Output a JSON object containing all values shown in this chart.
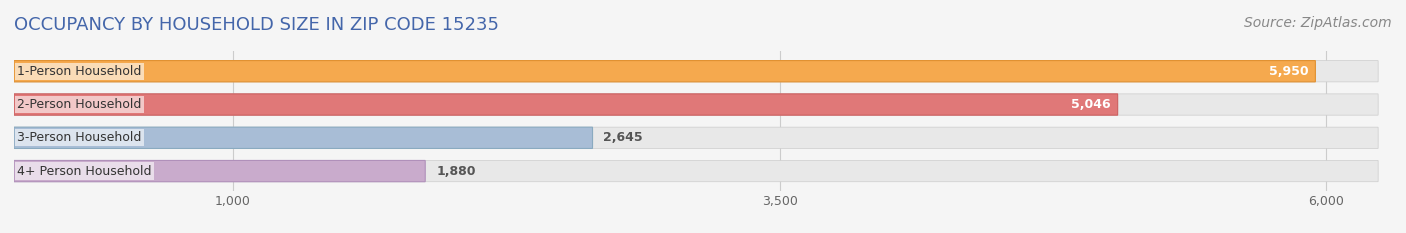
{
  "title": "OCCUPANCY BY HOUSEHOLD SIZE IN ZIP CODE 15235",
  "source": "Source: ZipAtlas.com",
  "categories": [
    "1-Person Household",
    "2-Person Household",
    "3-Person Household",
    "4+ Person Household"
  ],
  "values": [
    5950,
    5046,
    2645,
    1880
  ],
  "bar_colors": [
    "#F5A94E",
    "#E07878",
    "#A8BDD6",
    "#C9ABCC"
  ],
  "bar_edge_colors": [
    "#E09030",
    "#CC6060",
    "#8AAAC0",
    "#B090BA"
  ],
  "value_labels": [
    "5,950",
    "5,046",
    "2,645",
    "1,880"
  ],
  "label_colors": [
    "#ffffff",
    "#ffffff",
    "#555555",
    "#555555"
  ],
  "x_ticks": [
    1000,
    3500,
    6000
  ],
  "x_tick_labels": [
    "1,000",
    "3,500",
    "6,000"
  ],
  "xlim": [
    0,
    6300
  ],
  "title_color": "#4466aa",
  "source_color": "#888888",
  "title_fontsize": 13,
  "source_fontsize": 10,
  "label_fontsize": 9,
  "tick_fontsize": 9,
  "background_color": "#f5f5f5",
  "bar_background_color": "#e8e8e8"
}
